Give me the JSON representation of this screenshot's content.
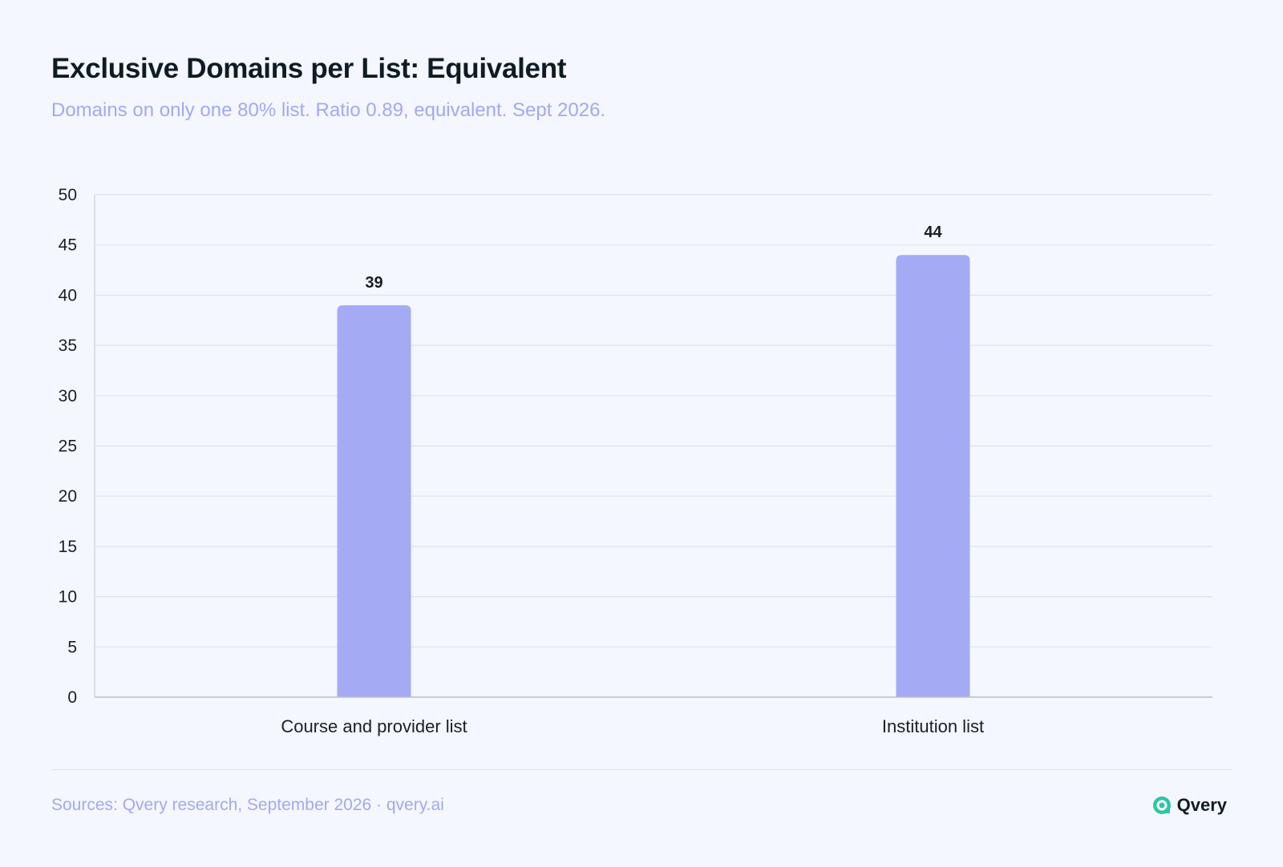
{
  "header": {
    "title": "Exclusive Domains per List: Equivalent",
    "subtitle": "Domains on only one 80% list. Ratio 0.89, equivalent. Sept 2026."
  },
  "chart_data": {
    "type": "bar",
    "categories": [
      "Course and provider list",
      "Institution list"
    ],
    "values": [
      39,
      44
    ],
    "ylim": [
      0,
      50
    ],
    "yticks": [
      0,
      5,
      10,
      15,
      20,
      25,
      30,
      35,
      40,
      45,
      50
    ],
    "grid": true,
    "bar_color": "#a4aaf4"
  },
  "footer": {
    "source": "Sources: Qvery research, September 2026 · qvery.ai",
    "brand": "Qvery",
    "brand_icon": "qvery-logo-icon",
    "brand_color": "#2ec4a6"
  }
}
